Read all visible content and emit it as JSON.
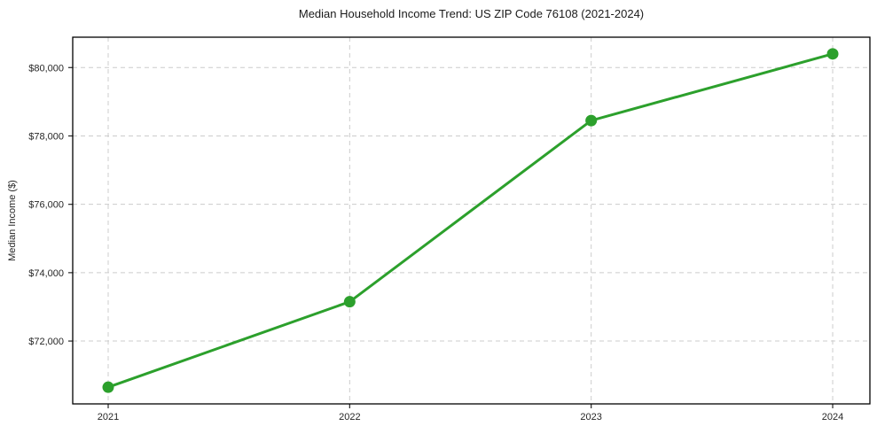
{
  "window": {
    "background": "#ffffff"
  },
  "chart_data": {
    "type": "line",
    "title": "Median Household Income Trend: US ZIP Code 76108 (2021-2024)",
    "xlabel": "",
    "ylabel": "Median Income ($)",
    "x": [
      2021,
      2022,
      2023,
      2024
    ],
    "series": [
      {
        "values": [
          70650,
          73150,
          78450,
          80400
        ],
        "color": "#2ca02c",
        "marker": "circle",
        "marker_radius": 6.5,
        "line_width": 3
      }
    ],
    "ylim": [
      70162,
      80888
    ],
    "yticks": [
      {
        "value": 72000,
        "label": "$72,000"
      },
      {
        "value": 74000,
        "label": "$74,000"
      },
      {
        "value": 76000,
        "label": "$76,000"
      },
      {
        "value": 78000,
        "label": "$78,000"
      },
      {
        "value": 80000,
        "label": "$80,000"
      }
    ],
    "xticks": [
      {
        "value": 2021,
        "label": "2021"
      },
      {
        "value": 2022,
        "label": "2022"
      },
      {
        "value": 2023,
        "label": "2023"
      },
      {
        "value": 2024,
        "label": "2024"
      }
    ],
    "grid": true,
    "grid_color": "#cccccc",
    "grid_dash": "5 4",
    "axis_color": "#000000",
    "tick_label_color": "#262626",
    "legend": "none"
  }
}
